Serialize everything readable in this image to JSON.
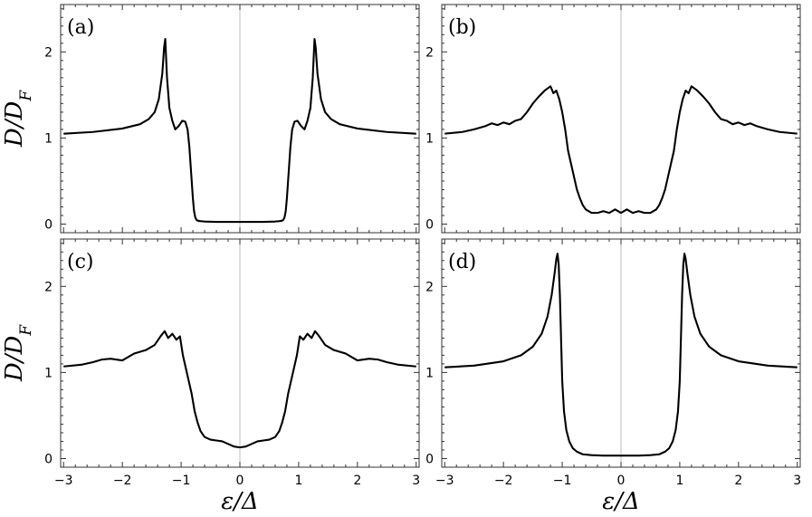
{
  "chart_data": [
    {
      "type": "line",
      "panel_label": "(a)",
      "ylabel": "D/D_F",
      "xlim": [
        -3.05,
        3.05
      ],
      "ylim": [
        -0.1,
        2.55
      ],
      "yticks": [
        0,
        1,
        2
      ],
      "vertical_line_at": 0,
      "series": [
        {
          "x": [
            -3,
            -2.5,
            -2,
            -1.7,
            -1.55,
            -1.45,
            -1.38,
            -1.32,
            -1.29,
            -1.27,
            -1.24,
            -1.2,
            -1.15,
            -1.1,
            -1.04,
            -0.98,
            -0.93,
            -0.89,
            -0.86,
            -0.83,
            -0.8,
            -0.78,
            -0.76,
            -0.74,
            -0.72,
            -0.68,
            -0.6,
            -0.4,
            0,
            0.4,
            0.6,
            0.68,
            0.72,
            0.74,
            0.76,
            0.78,
            0.8,
            0.83,
            0.86,
            0.89,
            0.93,
            0.98,
            1.04,
            1.1,
            1.15,
            1.2,
            1.24,
            1.27,
            1.29,
            1.32,
            1.38,
            1.45,
            1.55,
            1.7,
            2,
            2.5,
            3
          ],
          "y": [
            1.05,
            1.07,
            1.11,
            1.16,
            1.22,
            1.3,
            1.45,
            1.75,
            2.05,
            2.15,
            1.7,
            1.35,
            1.2,
            1.1,
            1.14,
            1.2,
            1.19,
            1.1,
            0.9,
            0.6,
            0.3,
            0.15,
            0.08,
            0.05,
            0.04,
            0.035,
            0.03,
            0.025,
            0.025,
            0.025,
            0.03,
            0.035,
            0.04,
            0.05,
            0.08,
            0.15,
            0.3,
            0.6,
            0.9,
            1.1,
            1.19,
            1.2,
            1.14,
            1.1,
            1.2,
            1.35,
            1.7,
            2.15,
            2.05,
            1.75,
            1.45,
            1.3,
            1.22,
            1.16,
            1.11,
            1.07,
            1.05
          ]
        }
      ]
    },
    {
      "type": "line",
      "panel_label": "(b)",
      "ylabel": "",
      "xlim": [
        -3.05,
        3.05
      ],
      "ylim": [
        -0.1,
        2.55
      ],
      "yticks": [
        0,
        1,
        2
      ],
      "vertical_line_at": 0,
      "series": [
        {
          "x": [
            -3,
            -2.7,
            -2.5,
            -2.3,
            -2.2,
            -2.1,
            -2.0,
            -1.9,
            -1.8,
            -1.7,
            -1.6,
            -1.5,
            -1.4,
            -1.3,
            -1.2,
            -1.15,
            -1.1,
            -1.05,
            -1.0,
            -0.95,
            -0.9,
            -0.85,
            -0.8,
            -0.75,
            -0.7,
            -0.65,
            -0.6,
            -0.5,
            -0.4,
            -0.3,
            -0.2,
            -0.1,
            0,
            0.1,
            0.2,
            0.3,
            0.4,
            0.5,
            0.6,
            0.65,
            0.7,
            0.75,
            0.8,
            0.85,
            0.9,
            0.95,
            1.0,
            1.05,
            1.1,
            1.15,
            1.2,
            1.3,
            1.4,
            1.5,
            1.6,
            1.7,
            1.8,
            1.9,
            2.0,
            2.1,
            2.2,
            2.3,
            2.5,
            2.7,
            3
          ],
          "y": [
            1.05,
            1.07,
            1.1,
            1.14,
            1.17,
            1.15,
            1.18,
            1.16,
            1.2,
            1.22,
            1.3,
            1.4,
            1.48,
            1.55,
            1.6,
            1.52,
            1.55,
            1.45,
            1.3,
            1.1,
            0.85,
            0.7,
            0.55,
            0.4,
            0.3,
            0.22,
            0.17,
            0.13,
            0.13,
            0.15,
            0.13,
            0.17,
            0.13,
            0.17,
            0.13,
            0.15,
            0.13,
            0.13,
            0.17,
            0.22,
            0.3,
            0.4,
            0.55,
            0.7,
            0.85,
            1.1,
            1.3,
            1.45,
            1.55,
            1.52,
            1.6,
            1.55,
            1.48,
            1.4,
            1.3,
            1.22,
            1.2,
            1.16,
            1.18,
            1.15,
            1.17,
            1.14,
            1.1,
            1.07,
            1.05
          ]
        }
      ]
    },
    {
      "type": "line",
      "panel_label": "(c)",
      "ylabel": "D/D_F",
      "xlabel": "ε/Δ",
      "xlim": [
        -3.05,
        3.05
      ],
      "ylim": [
        -0.1,
        2.55
      ],
      "xticks": [
        -3,
        -2,
        -1,
        0,
        1,
        2,
        3
      ],
      "yticks": [
        0,
        1,
        2
      ],
      "vertical_line_at": 0,
      "series": [
        {
          "x": [
            -3,
            -2.7,
            -2.5,
            -2.35,
            -2.2,
            -2.0,
            -1.8,
            -1.6,
            -1.45,
            -1.35,
            -1.28,
            -1.22,
            -1.15,
            -1.08,
            -1.02,
            -0.97,
            -0.92,
            -0.87,
            -0.82,
            -0.77,
            -0.72,
            -0.67,
            -0.6,
            -0.5,
            -0.4,
            -0.3,
            -0.2,
            -0.1,
            0,
            0.1,
            0.2,
            0.3,
            0.4,
            0.5,
            0.6,
            0.67,
            0.72,
            0.77,
            0.82,
            0.87,
            0.92,
            0.97,
            1.02,
            1.08,
            1.15,
            1.22,
            1.28,
            1.35,
            1.45,
            1.6,
            1.8,
            2.0,
            2.2,
            2.35,
            2.5,
            2.7,
            3
          ],
          "y": [
            1.07,
            1.09,
            1.12,
            1.15,
            1.16,
            1.14,
            1.22,
            1.26,
            1.32,
            1.42,
            1.48,
            1.4,
            1.45,
            1.38,
            1.42,
            1.2,
            1.05,
            0.9,
            0.75,
            0.55,
            0.42,
            0.32,
            0.25,
            0.22,
            0.21,
            0.2,
            0.17,
            0.14,
            0.13,
            0.14,
            0.17,
            0.2,
            0.21,
            0.22,
            0.25,
            0.32,
            0.42,
            0.55,
            0.75,
            0.9,
            1.05,
            1.2,
            1.42,
            1.38,
            1.45,
            1.4,
            1.48,
            1.42,
            1.32,
            1.26,
            1.22,
            1.14,
            1.16,
            1.15,
            1.12,
            1.09,
            1.07
          ]
        }
      ]
    },
    {
      "type": "line",
      "panel_label": "(d)",
      "ylabel": "",
      "xlabel": "ε/Δ",
      "xlim": [
        -3.05,
        3.05
      ],
      "ylim": [
        -0.1,
        2.55
      ],
      "xticks": [
        -3,
        -2,
        -1,
        0,
        1,
        2,
        3
      ],
      "yticks": [
        0,
        1,
        2
      ],
      "vertical_line_at": 0,
      "series": [
        {
          "x": [
            -3,
            -2.5,
            -2,
            -1.7,
            -1.5,
            -1.35,
            -1.25,
            -1.18,
            -1.13,
            -1.1,
            -1.08,
            -1.06,
            -1.04,
            -1.02,
            -1.0,
            -0.97,
            -0.93,
            -0.88,
            -0.82,
            -0.75,
            -0.65,
            -0.5,
            -0.3,
            0,
            0.3,
            0.5,
            0.65,
            0.75,
            0.82,
            0.88,
            0.93,
            0.97,
            1.0,
            1.02,
            1.04,
            1.06,
            1.08,
            1.1,
            1.13,
            1.18,
            1.25,
            1.35,
            1.5,
            1.7,
            2,
            2.5,
            3
          ],
          "y": [
            1.06,
            1.08,
            1.13,
            1.2,
            1.3,
            1.45,
            1.65,
            1.9,
            2.15,
            2.32,
            2.38,
            2.25,
            1.9,
            1.4,
            0.9,
            0.55,
            0.33,
            0.2,
            0.12,
            0.08,
            0.05,
            0.04,
            0.035,
            0.035,
            0.035,
            0.04,
            0.05,
            0.08,
            0.12,
            0.2,
            0.33,
            0.55,
            0.9,
            1.4,
            1.9,
            2.25,
            2.38,
            2.32,
            2.15,
            1.9,
            1.65,
            1.45,
            1.3,
            1.2,
            1.13,
            1.08,
            1.06
          ]
        }
      ]
    }
  ]
}
